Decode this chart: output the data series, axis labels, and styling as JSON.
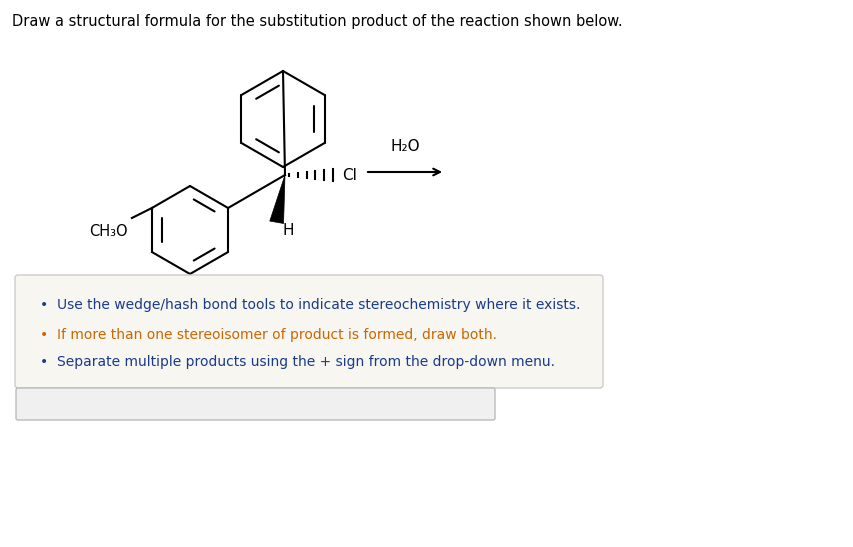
{
  "title": "Draw a structural formula for the substitution product of the reaction shown below.",
  "title_color": "#000000",
  "title_fontsize": 11,
  "arrow_label": "H₂O",
  "bullet_points": [
    "Use the wedge/hash bond tools to indicate stereochemistry where it exists.",
    "If more than one stereoisomer of product is formed, draw both.",
    "Separate multiple products using the + sign from the drop-down menu."
  ],
  "bullet_colors": [
    "#1a3a8a",
    "#1a3a8a",
    "#1a3a8a"
  ],
  "box_bg": "#f7f6f1",
  "box_edge": "#cccccc",
  "background_color": "#ffffff"
}
